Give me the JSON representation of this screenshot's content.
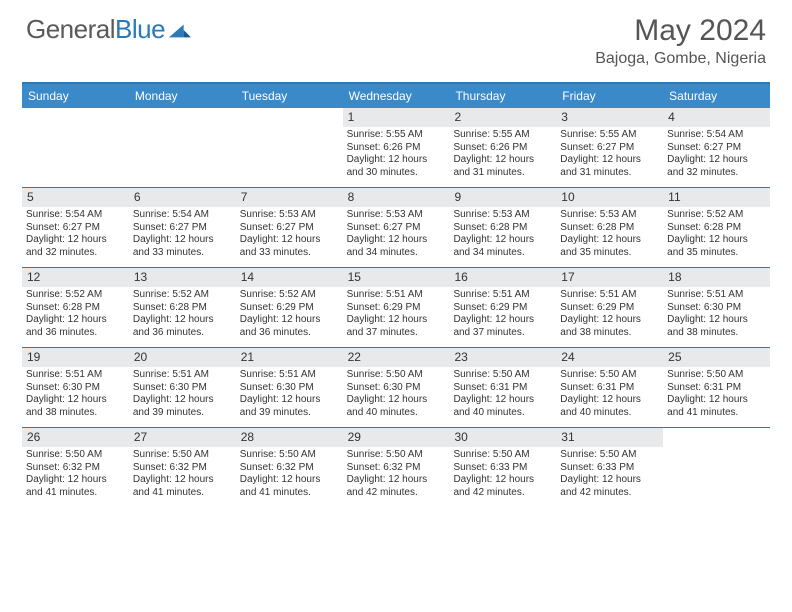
{
  "brand": {
    "part1": "General",
    "part2": "Blue"
  },
  "title": "May 2024",
  "location": "Bajoga, Gombe, Nigeria",
  "colors": {
    "header_bg": "#3a89c9",
    "border": "#2a7ab9",
    "num_bg": "#e7e9eb",
    "text": "#333333",
    "logo_gray": "#5a5a5a"
  },
  "day_names": [
    "Sunday",
    "Monday",
    "Tuesday",
    "Wednesday",
    "Thursday",
    "Friday",
    "Saturday"
  ],
  "weeks": [
    [
      {
        "n": "",
        "sr": "",
        "ss": "",
        "dl": ""
      },
      {
        "n": "",
        "sr": "",
        "ss": "",
        "dl": ""
      },
      {
        "n": "",
        "sr": "",
        "ss": "",
        "dl": ""
      },
      {
        "n": "1",
        "sr": "Sunrise: 5:55 AM",
        "ss": "Sunset: 6:26 PM",
        "dl": "Daylight: 12 hours and 30 minutes."
      },
      {
        "n": "2",
        "sr": "Sunrise: 5:55 AM",
        "ss": "Sunset: 6:26 PM",
        "dl": "Daylight: 12 hours and 31 minutes."
      },
      {
        "n": "3",
        "sr": "Sunrise: 5:55 AM",
        "ss": "Sunset: 6:27 PM",
        "dl": "Daylight: 12 hours and 31 minutes."
      },
      {
        "n": "4",
        "sr": "Sunrise: 5:54 AM",
        "ss": "Sunset: 6:27 PM",
        "dl": "Daylight: 12 hours and 32 minutes."
      }
    ],
    [
      {
        "n": "5",
        "sr": "Sunrise: 5:54 AM",
        "ss": "Sunset: 6:27 PM",
        "dl": "Daylight: 12 hours and 32 minutes."
      },
      {
        "n": "6",
        "sr": "Sunrise: 5:54 AM",
        "ss": "Sunset: 6:27 PM",
        "dl": "Daylight: 12 hours and 33 minutes."
      },
      {
        "n": "7",
        "sr": "Sunrise: 5:53 AM",
        "ss": "Sunset: 6:27 PM",
        "dl": "Daylight: 12 hours and 33 minutes."
      },
      {
        "n": "8",
        "sr": "Sunrise: 5:53 AM",
        "ss": "Sunset: 6:27 PM",
        "dl": "Daylight: 12 hours and 34 minutes."
      },
      {
        "n": "9",
        "sr": "Sunrise: 5:53 AM",
        "ss": "Sunset: 6:28 PM",
        "dl": "Daylight: 12 hours and 34 minutes."
      },
      {
        "n": "10",
        "sr": "Sunrise: 5:53 AM",
        "ss": "Sunset: 6:28 PM",
        "dl": "Daylight: 12 hours and 35 minutes."
      },
      {
        "n": "11",
        "sr": "Sunrise: 5:52 AM",
        "ss": "Sunset: 6:28 PM",
        "dl": "Daylight: 12 hours and 35 minutes."
      }
    ],
    [
      {
        "n": "12",
        "sr": "Sunrise: 5:52 AM",
        "ss": "Sunset: 6:28 PM",
        "dl": "Daylight: 12 hours and 36 minutes."
      },
      {
        "n": "13",
        "sr": "Sunrise: 5:52 AM",
        "ss": "Sunset: 6:28 PM",
        "dl": "Daylight: 12 hours and 36 minutes."
      },
      {
        "n": "14",
        "sr": "Sunrise: 5:52 AM",
        "ss": "Sunset: 6:29 PM",
        "dl": "Daylight: 12 hours and 36 minutes."
      },
      {
        "n": "15",
        "sr": "Sunrise: 5:51 AM",
        "ss": "Sunset: 6:29 PM",
        "dl": "Daylight: 12 hours and 37 minutes."
      },
      {
        "n": "16",
        "sr": "Sunrise: 5:51 AM",
        "ss": "Sunset: 6:29 PM",
        "dl": "Daylight: 12 hours and 37 minutes."
      },
      {
        "n": "17",
        "sr": "Sunrise: 5:51 AM",
        "ss": "Sunset: 6:29 PM",
        "dl": "Daylight: 12 hours and 38 minutes."
      },
      {
        "n": "18",
        "sr": "Sunrise: 5:51 AM",
        "ss": "Sunset: 6:30 PM",
        "dl": "Daylight: 12 hours and 38 minutes."
      }
    ],
    [
      {
        "n": "19",
        "sr": "Sunrise: 5:51 AM",
        "ss": "Sunset: 6:30 PM",
        "dl": "Daylight: 12 hours and 38 minutes."
      },
      {
        "n": "20",
        "sr": "Sunrise: 5:51 AM",
        "ss": "Sunset: 6:30 PM",
        "dl": "Daylight: 12 hours and 39 minutes."
      },
      {
        "n": "21",
        "sr": "Sunrise: 5:51 AM",
        "ss": "Sunset: 6:30 PM",
        "dl": "Daylight: 12 hours and 39 minutes."
      },
      {
        "n": "22",
        "sr": "Sunrise: 5:50 AM",
        "ss": "Sunset: 6:30 PM",
        "dl": "Daylight: 12 hours and 40 minutes."
      },
      {
        "n": "23",
        "sr": "Sunrise: 5:50 AM",
        "ss": "Sunset: 6:31 PM",
        "dl": "Daylight: 12 hours and 40 minutes."
      },
      {
        "n": "24",
        "sr": "Sunrise: 5:50 AM",
        "ss": "Sunset: 6:31 PM",
        "dl": "Daylight: 12 hours and 40 minutes."
      },
      {
        "n": "25",
        "sr": "Sunrise: 5:50 AM",
        "ss": "Sunset: 6:31 PM",
        "dl": "Daylight: 12 hours and 41 minutes."
      }
    ],
    [
      {
        "n": "26",
        "sr": "Sunrise: 5:50 AM",
        "ss": "Sunset: 6:32 PM",
        "dl": "Daylight: 12 hours and 41 minutes."
      },
      {
        "n": "27",
        "sr": "Sunrise: 5:50 AM",
        "ss": "Sunset: 6:32 PM",
        "dl": "Daylight: 12 hours and 41 minutes."
      },
      {
        "n": "28",
        "sr": "Sunrise: 5:50 AM",
        "ss": "Sunset: 6:32 PM",
        "dl": "Daylight: 12 hours and 41 minutes."
      },
      {
        "n": "29",
        "sr": "Sunrise: 5:50 AM",
        "ss": "Sunset: 6:32 PM",
        "dl": "Daylight: 12 hours and 42 minutes."
      },
      {
        "n": "30",
        "sr": "Sunrise: 5:50 AM",
        "ss": "Sunset: 6:33 PM",
        "dl": "Daylight: 12 hours and 42 minutes."
      },
      {
        "n": "31",
        "sr": "Sunrise: 5:50 AM",
        "ss": "Sunset: 6:33 PM",
        "dl": "Daylight: 12 hours and 42 minutes."
      },
      {
        "n": "",
        "sr": "",
        "ss": "",
        "dl": ""
      }
    ]
  ]
}
